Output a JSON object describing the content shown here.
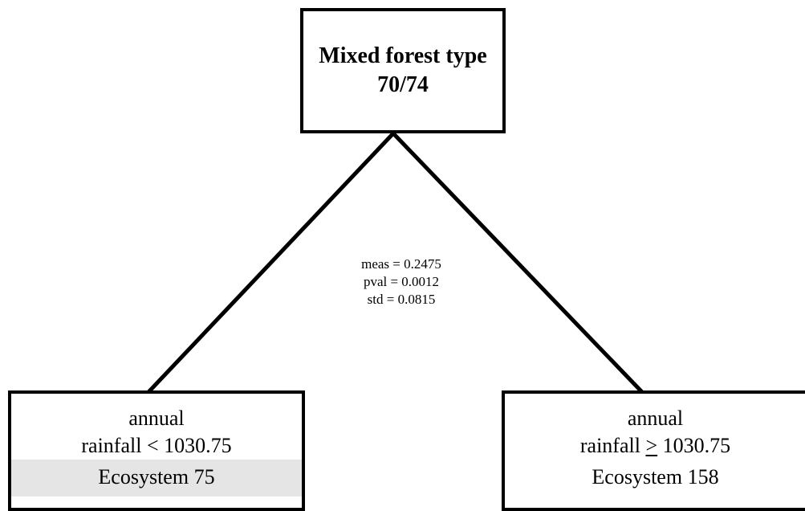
{
  "root": {
    "label": "Mixed forest type",
    "count": "70/74"
  },
  "split_stats": {
    "meas": "meas = 0.2475",
    "pval": "pval = 0.0012",
    "std": "std = 0.0815"
  },
  "left_leaf": {
    "line1": "annual",
    "line2": "rainfall < 1030.75",
    "ecosystem": "Ecosystem 75",
    "highlight_color": "#e5e5e5"
  },
  "right_leaf": {
    "line1": "annual",
    "line2_prefix": "rainfall ",
    "line2_op": ">",
    "line2_value": " 1030.75",
    "ecosystem": "Ecosystem 158"
  }
}
